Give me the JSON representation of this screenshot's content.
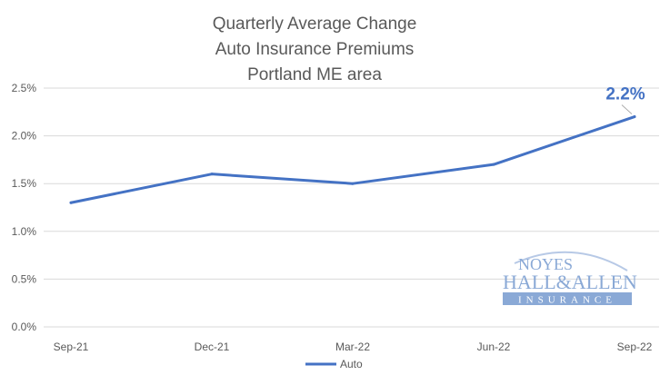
{
  "chart_data": {
    "type": "line",
    "title": [
      "Quarterly Average Change",
      "Auto Insurance Premiums",
      "Portland ME area"
    ],
    "categories": [
      "Sep-21",
      "Dec-21",
      "Mar-22",
      "Jun-22",
      "Sep-22"
    ],
    "series": [
      {
        "name": "Auto",
        "values": [
          1.3,
          1.6,
          1.5,
          1.7,
          2.2
        ],
        "color": "#4472c4"
      }
    ],
    "ylim": [
      0,
      2.5
    ],
    "yticks": [
      0,
      0.5,
      1.0,
      1.5,
      2.0,
      2.5
    ],
    "ytick_labels": [
      "0.0%",
      "0.5%",
      "1.0%",
      "1.5%",
      "2.0%",
      "2.5%"
    ],
    "grid": true,
    "legend": "bottom",
    "annotation": {
      "category": "Sep-22",
      "text": "2.2%",
      "color": "#4472c4"
    }
  },
  "logo": {
    "line1": "NOYES",
    "line2": "HALL&ALLEN",
    "line3": "INSURANCE",
    "color": "#8aa9d6"
  }
}
